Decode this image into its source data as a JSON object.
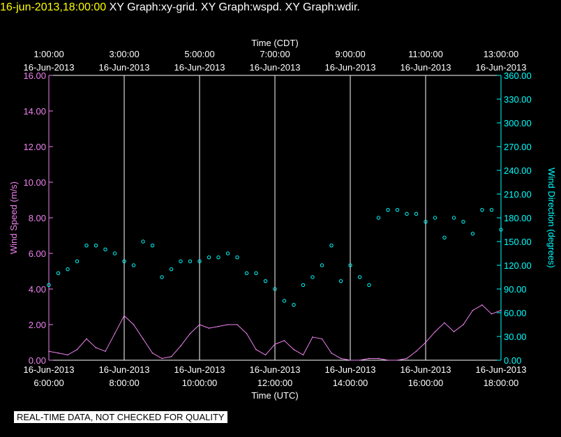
{
  "header": {
    "timestamp": "16-jun-2013,18:00:00",
    "graphs": "XY Graph:xy-grid.  XY Graph:wspd.  XY Graph:wdir."
  },
  "disclaimer": "REAL-TIME DATA, NOT CHECKED FOR QUALITY",
  "colors": {
    "speed": "#ee82ee",
    "direction": "#00ffff",
    "grid": "#ffffff",
    "background": "#000000"
  },
  "chart_data": {
    "type": "line",
    "xlabel_top": "Time (CDT)",
    "xlabel_bottom": "Time (UTC)",
    "top_ticks": [
      {
        "t": 0,
        "time": "1:00:00",
        "date": "16-Jun-2013"
      },
      {
        "t": 2,
        "time": "3:00:00",
        "date": "16-Jun-2013"
      },
      {
        "t": 4,
        "time": "5:00:00",
        "date": "16-Jun-2013"
      },
      {
        "t": 6,
        "time": "7:00:00",
        "date": "16-Jun-2013"
      },
      {
        "t": 8,
        "time": "9:00:00",
        "date": "16-Jun-2013"
      },
      {
        "t": 10,
        "time": "11:00:00",
        "date": "16-Jun-2013"
      },
      {
        "t": 12,
        "time": "13:00:00",
        "date": "16-Jun-2013"
      }
    ],
    "bottom_ticks": [
      {
        "t": 0,
        "date": "16-Jun-2013",
        "time": "6:00:00"
      },
      {
        "t": 2,
        "date": "16-Jun-2013",
        "time": "8:00:00"
      },
      {
        "t": 4,
        "date": "16-Jun-2013",
        "time": "10:00:00"
      },
      {
        "t": 6,
        "date": "16-Jun-2013",
        "time": "12:00:00"
      },
      {
        "t": 8,
        "date": "16-Jun-2013",
        "time": "14:00:00"
      },
      {
        "t": 10,
        "date": "16-Jun-2013",
        "time": "16:00:00"
      },
      {
        "t": 12,
        "date": "16-Jun-2013",
        "time": "18:00:00"
      }
    ],
    "xlim": [
      0,
      12
    ],
    "left_axis": {
      "label": "Wind Speed (m/s)",
      "ylim": [
        0,
        16
      ],
      "ticks": [
        "0.00",
        "2.00",
        "4.00",
        "6.00",
        "8.00",
        "10.00",
        "12.00",
        "14.00",
        "16.00"
      ]
    },
    "right_axis": {
      "label": "Wind Direction (degrees)",
      "ylim": [
        0,
        360
      ],
      "ticks": [
        "0.00",
        "30.00",
        "60.00",
        "90.00",
        "120.00",
        "150.00",
        "180.00",
        "210.00",
        "240.00",
        "270.00",
        "300.00",
        "330.00",
        "360.00"
      ]
    },
    "series": [
      {
        "name": "Wind Speed",
        "style": "line",
        "x": [
          0,
          0.25,
          0.5,
          0.75,
          1,
          1.25,
          1.5,
          1.75,
          2,
          2.25,
          2.5,
          2.75,
          3,
          3.25,
          3.5,
          3.75,
          4,
          4.25,
          4.5,
          4.75,
          5,
          5.25,
          5.5,
          5.75,
          6,
          6.25,
          6.5,
          6.75,
          7,
          7.25,
          7.5,
          7.75,
          8,
          8.25,
          8.5,
          8.75,
          9,
          9.25,
          9.5,
          9.75,
          10,
          10.25,
          10.5,
          10.75,
          11,
          11.25,
          11.5,
          11.75,
          12
        ],
        "values": [
          0.5,
          0.4,
          0.3,
          0.6,
          1.2,
          0.7,
          0.5,
          1.5,
          2.5,
          2.0,
          1.2,
          0.4,
          0.1,
          0.2,
          0.8,
          1.5,
          2.0,
          1.8,
          1.9,
          2.0,
          2.0,
          1.5,
          0.6,
          0.3,
          0.9,
          1.1,
          0.6,
          0.3,
          1.3,
          1.2,
          0.4,
          0.1,
          0.0,
          0.0,
          0.1,
          0.1,
          0.0,
          0.0,
          0.1,
          0.5,
          1.0,
          1.6,
          2.1,
          1.6,
          2.0,
          2.8,
          3.1,
          2.6,
          2.8
        ]
      },
      {
        "name": "Wind Direction",
        "style": "scatter",
        "x": [
          0,
          0.25,
          0.5,
          0.75,
          1,
          1.25,
          1.5,
          1.75,
          2,
          2.25,
          2.5,
          2.75,
          3,
          3.25,
          3.5,
          3.75,
          4,
          4.25,
          4.5,
          4.75,
          5,
          5.25,
          5.5,
          5.75,
          6,
          6.25,
          6.5,
          6.75,
          7,
          7.25,
          7.5,
          7.75,
          8,
          8.25,
          8.5,
          8.75,
          9,
          9.25,
          9.5,
          9.75,
          10,
          10.25,
          10.5,
          10.75,
          11,
          11.25,
          11.5,
          11.75,
          12
        ],
        "values": [
          95,
          110,
          115,
          125,
          145,
          145,
          140,
          135,
          125,
          120,
          150,
          145,
          105,
          115,
          125,
          125,
          125,
          130,
          130,
          135,
          130,
          110,
          110,
          100,
          90,
          75,
          70,
          95,
          105,
          120,
          145,
          100,
          120,
          105,
          95,
          180,
          190,
          190,
          185,
          185,
          175,
          180,
          155,
          180,
          175,
          160,
          190,
          190,
          165
        ]
      }
    ]
  }
}
